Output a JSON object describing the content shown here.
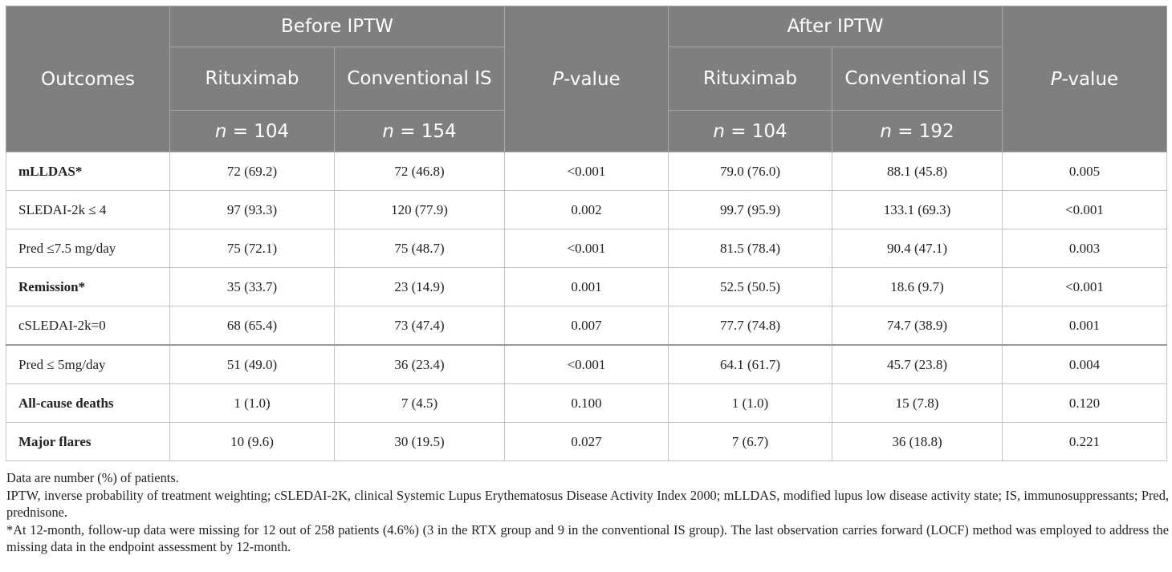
{
  "header": {
    "outcomes": "Outcomes",
    "before_iptw": "Before IPTW",
    "after_iptw": "After IPTW",
    "rituximab": "Rituximab",
    "conventional_is": "Conventional IS",
    "p_italic": "P",
    "p_suffix": "-value",
    "n_italic": "n",
    "before_rtx_n": " = 104",
    "before_conv_n": " = 154",
    "after_rtx_n": " = 104",
    "after_conv_n": " = 192"
  },
  "rows": [
    {
      "label": "mLLDAS*",
      "bold": true,
      "before_rtx": "72 (69.2)",
      "before_conv": "72 (46.8)",
      "before_p": "<0.001",
      "after_rtx": "79.0 (76.0)",
      "after_conv": "88.1 (45.8)",
      "after_p": "0.005"
    },
    {
      "label": "SLEDAI-2k ≤ 4",
      "bold": false,
      "before_rtx": "97 (93.3)",
      "before_conv": "120 (77.9)",
      "before_p": "0.002",
      "after_rtx": "99.7 (95.9)",
      "after_conv": "133.1 (69.3)",
      "after_p": "<0.001"
    },
    {
      "label": "Pred ≤7.5 mg/day",
      "bold": false,
      "before_rtx": "75 (72.1)",
      "before_conv": "75 (48.7)",
      "before_p": "<0.001",
      "after_rtx": "81.5 (78.4)",
      "after_conv": "90.4 (47.1)",
      "after_p": "0.003"
    },
    {
      "label": "Remission*",
      "bold": true,
      "before_rtx": "35 (33.7)",
      "before_conv": "23 (14.9)",
      "before_p": "0.001",
      "after_rtx": "52.5 (50.5)",
      "after_conv": "18.6 (9.7)",
      "after_p": "<0.001"
    },
    {
      "label": "cSLEDAI-2k=0",
      "bold": false,
      "before_rtx": "68 (65.4)",
      "before_conv": "73 (47.4)",
      "before_p": "0.007",
      "after_rtx": "77.7 (74.8)",
      "after_conv": "74.7 (38.9)",
      "after_p": "0.001"
    },
    {
      "label": "Pred ≤ 5mg/day",
      "bold": false,
      "before_rtx": "51 (49.0)",
      "before_conv": "36 (23.4)",
      "before_p": "<0.001",
      "after_rtx": "64.1 (61.7)",
      "after_conv": "45.7 (23.8)",
      "after_p": "0.004"
    },
    {
      "label": "All-cause deaths",
      "bold": true,
      "before_rtx": "1 (1.0)",
      "before_conv": "7 (4.5)",
      "before_p": "0.100",
      "after_rtx": "1 (1.0)",
      "after_conv": "15 (7.8)",
      "after_p": "0.120"
    },
    {
      "label": "Major flares",
      "bold": true,
      "before_rtx": "10 (9.6)",
      "before_conv": "30 (19.5)",
      "before_p": "0.027",
      "after_rtx": "7 (6.7)",
      "after_conv": "36 (18.8)",
      "after_p": "0.221"
    }
  ],
  "notes": [
    "Data are number (%) of patients.",
    "IPTW, inverse probability of treatment weighting; cSLEDAI-2K, clinical Systemic Lupus Erythematosus Disease Activity Index 2000; mLLDAS, modified lupus low disease activity state; IS, immunosuppressants; Pred, prednisone.",
    "*At 12-month, follow-up data were missing for 12 out of 258 patients (4.6%) (3 in the RTX group and 9 in the conventional IS group). The last observation carries forward (LOCF) method was employed to address the missing data in the endpoint assessment by 12-month."
  ],
  "colors": {
    "header_bg": "#7f7f7f",
    "header_text": "#ffffff",
    "body_text": "#222222"
  }
}
